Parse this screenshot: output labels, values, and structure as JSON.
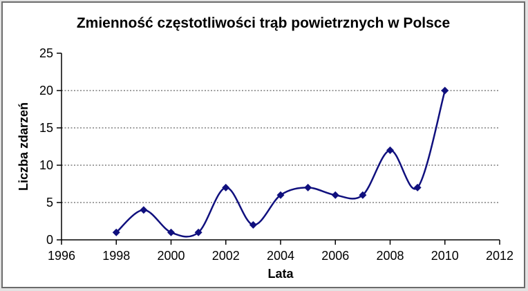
{
  "chart_data": {
    "type": "line",
    "title": "Zmienność częstotliwości trąb powietrznych w Polsce",
    "xlabel": "Lata",
    "ylabel": "Liczba zdarzeń",
    "x": [
      1998,
      1999,
      2000,
      2001,
      2002,
      2003,
      2004,
      2005,
      2006,
      2007,
      2008,
      2009,
      2010
    ],
    "values": [
      1,
      4,
      1,
      1,
      7,
      2,
      6,
      7,
      6,
      6,
      12,
      7,
      20
    ],
    "xlim": [
      1996,
      2012
    ],
    "ylim": [
      0,
      25
    ],
    "x_ticks": [
      1996,
      1998,
      2000,
      2002,
      2004,
      2006,
      2008,
      2010,
      2012
    ],
    "y_ticks": [
      0,
      5,
      10,
      15,
      20,
      25
    ],
    "grid_y": [
      5,
      10,
      15,
      20
    ],
    "smooth": true,
    "marker": "diamond",
    "legend_position": "none",
    "line_color": "#10107e",
    "grid_color": "#3d3d3d",
    "axis_color": "#000000",
    "background_color": "#ffffff",
    "frame_border_color": "#6b6b6b"
  }
}
